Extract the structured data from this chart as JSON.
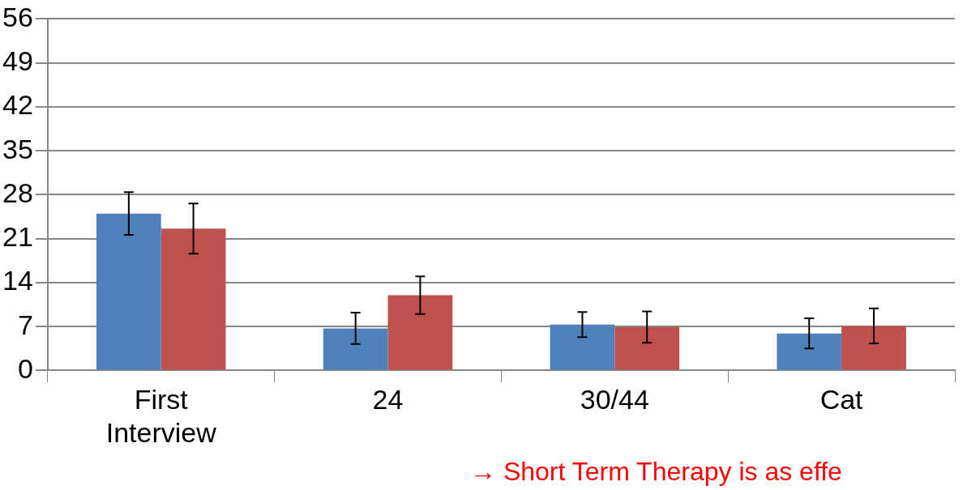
{
  "chart_data": {
    "type": "bar",
    "categories": [
      "First Interview",
      "24",
      "30/44",
      "Cat"
    ],
    "series": [
      {
        "color": "#4f81bd",
        "values": [
          25,
          6.7,
          7.3,
          5.9
        ],
        "errors": [
          3.4,
          2.5,
          2,
          2.4
        ]
      },
      {
        "color": "#c0504d",
        "values": [
          22.6,
          12,
          6.9,
          7.1
        ],
        "errors": [
          4,
          3,
          2.5,
          2.8
        ]
      }
    ],
    "ylim": [
      0,
      56
    ],
    "yticks": [
      0,
      7,
      14,
      21,
      28,
      35,
      42,
      49,
      56
    ],
    "grid": "y",
    "legend": false,
    "annotations": [
      "→ Short Term Therapy is as effe"
    ]
  }
}
